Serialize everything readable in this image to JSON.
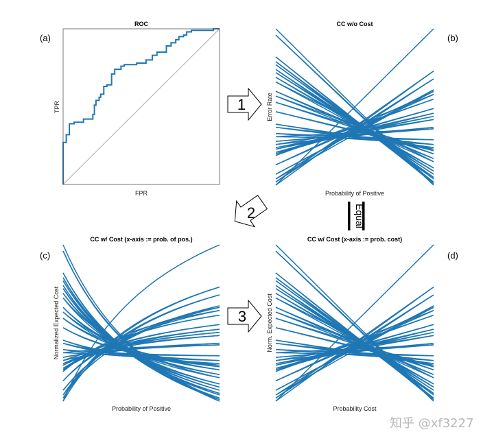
{
  "panels": {
    "a": {
      "letter": "(a)",
      "title": "ROC",
      "xlabel": "FPR",
      "ylabel": "TPR"
    },
    "b": {
      "letter": "(b)",
      "title": "CC w/o Cost",
      "xlabel": "Probability of Positive",
      "ylabel": "Error Rate"
    },
    "c": {
      "letter": "(c)",
      "title": "CC w/ Cost (x-axis := prob. of pos.)",
      "xlabel": "Probability of Positive",
      "ylabel": "Normalized Expected Cost"
    },
    "d": {
      "letter": "(d)",
      "title": "CC w/ Cost (x-axis := prob. cost)",
      "xlabel": "Probability Cost",
      "ylabel": "Norm. Expected Cost"
    }
  },
  "arrows": {
    "one": "1",
    "two": "2",
    "three": "3",
    "equal": "Equal"
  },
  "watermark": "知乎 @xf3227",
  "colors": {
    "curve": "#1f77b4",
    "diagonal": "#a0a0a0",
    "axis": "#555555"
  },
  "chart_data": [
    {
      "type": "line",
      "title": "ROC",
      "xlabel": "FPR",
      "ylabel": "TPR",
      "xlim": [
        0,
        1
      ],
      "ylim": [
        0,
        1
      ],
      "series": [
        {
          "x": [
            0,
            0,
            0.02,
            0.02,
            0.04,
            0.04,
            0.07,
            0.07,
            0.13,
            0.13,
            0.19,
            0.19,
            0.2,
            0.2,
            0.21,
            0.21,
            0.23,
            0.23,
            0.24,
            0.24,
            0.26,
            0.26,
            0.28,
            0.28,
            0.31,
            0.31,
            0.33,
            0.33,
            0.37,
            0.37,
            0.39,
            0.39,
            0.47,
            0.47,
            0.53,
            0.53,
            0.57,
            0.57,
            0.6,
            0.6,
            0.66,
            0.66,
            0.69,
            0.69,
            0.72,
            0.72,
            0.74,
            0.74,
            0.77,
            0.77,
            0.79,
            0.79,
            0.82,
            0.82,
            0.96,
            0.96,
            1
          ],
          "y": [
            0,
            0.27,
            0.27,
            0.32,
            0.32,
            0.39,
            0.39,
            0.4,
            0.4,
            0.42,
            0.42,
            0.45,
            0.45,
            0.51,
            0.51,
            0.54,
            0.54,
            0.56,
            0.56,
            0.58,
            0.58,
            0.63,
            0.63,
            0.64,
            0.64,
            0.71,
            0.71,
            0.74,
            0.74,
            0.76,
            0.76,
            0.77,
            0.77,
            0.78,
            0.78,
            0.8,
            0.8,
            0.83,
            0.83,
            0.85,
            0.85,
            0.89,
            0.89,
            0.91,
            0.91,
            0.93,
            0.93,
            0.95,
            0.95,
            0.96,
            0.96,
            0.98,
            0.98,
            0.99,
            0.99,
            1.0,
            1.0
          ]
        },
        {
          "x": [
            0,
            1
          ],
          "y": [
            0,
            1
          ]
        }
      ]
    },
    {
      "type": "line",
      "title": "CC w/o Cost",
      "xlabel": "Probability of Positive",
      "ylabel": "Error Rate",
      "xlim": [
        0,
        1
      ],
      "ylim": [
        0,
        1
      ],
      "note_lines": "one cost line per ROC point: y = FPR*(1-x) + (1-TPR)*x"
    },
    {
      "type": "line",
      "title": "CC w/ Cost (x-axis := prob. of pos.)",
      "xlabel": "Probability of Positive",
      "ylabel": "Normalized Expected Cost",
      "xlim": [
        0,
        1
      ],
      "ylim": [
        0,
        1
      ]
    },
    {
      "type": "line",
      "title": "CC w/ Cost (x-axis := prob. cost)",
      "xlabel": "Probability Cost",
      "ylabel": "Norm. Expected Cost",
      "xlim": [
        0,
        1
      ],
      "ylim": [
        0,
        1
      ]
    }
  ]
}
